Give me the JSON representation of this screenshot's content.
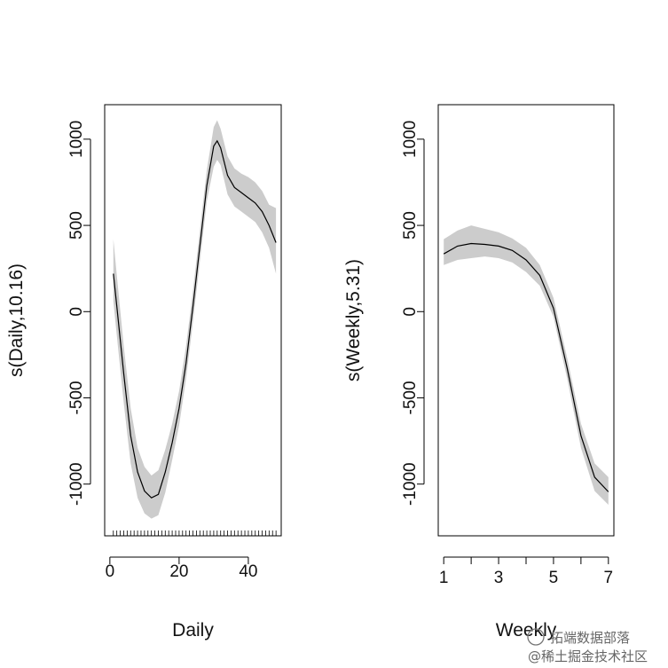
{
  "chart_data": [
    {
      "type": "line",
      "xlabel": "Daily",
      "ylabel": "s(Daily,10.16)",
      "xlim": [
        -1.5,
        49.5
      ],
      "ylim": [
        -1300,
        1200
      ],
      "xticks": [
        0,
        20,
        40
      ],
      "yticks": [
        -1000,
        -500,
        0,
        500,
        1000
      ],
      "rug": [
        1,
        2,
        3,
        4,
        5,
        6,
        7,
        8,
        9,
        10,
        11,
        12,
        13,
        14,
        15,
        16,
        17,
        18,
        19,
        20,
        21,
        22,
        23,
        24,
        25,
        26,
        27,
        28,
        29,
        30,
        31,
        32,
        33,
        34,
        35,
        36,
        37,
        38,
        39,
        40,
        41,
        42,
        43,
        44,
        45,
        46,
        47,
        48
      ],
      "series": [
        {
          "x": [
            1,
            2,
            4,
            6,
            8,
            10,
            12,
            14,
            16,
            18,
            20,
            22,
            24,
            26,
            28,
            30,
            31,
            32,
            34,
            36,
            38,
            40,
            42,
            44,
            46,
            48
          ],
          "y": [
            220,
            30,
            -360,
            -720,
            -930,
            -1040,
            -1080,
            -1060,
            -930,
            -760,
            -560,
            -300,
            30,
            380,
            730,
            960,
            990,
            950,
            790,
            720,
            690,
            660,
            630,
            580,
            500,
            400
          ],
          "lower": [
            60,
            -140,
            -530,
            -880,
            -1080,
            -1170,
            -1200,
            -1180,
            -1050,
            -860,
            -660,
            -390,
            -60,
            290,
            640,
            840,
            880,
            850,
            680,
            610,
            580,
            550,
            520,
            460,
            370,
            220
          ],
          "upper": [
            420,
            210,
            -200,
            -560,
            -790,
            -900,
            -950,
            -920,
            -800,
            -650,
            -460,
            -200,
            120,
            470,
            820,
            1070,
            1110,
            1060,
            900,
            830,
            800,
            780,
            750,
            700,
            620,
            600
          ]
        }
      ]
    },
    {
      "type": "line",
      "xlabel": "Weekly",
      "ylabel": "s(Weekly,5.31)",
      "xlim": [
        0.8,
        7.2
      ],
      "ylim": [
        -1300,
        1200
      ],
      "xticks": [
        1,
        2,
        3,
        4,
        5,
        6,
        7
      ],
      "xticklabels": [
        "1",
        "",
        "3",
        "",
        "5",
        "",
        "7"
      ],
      "yticks": [
        -1000,
        -500,
        0,
        500,
        1000
      ],
      "series": [
        {
          "x": [
            1,
            1.5,
            2,
            2.5,
            3,
            3.5,
            4,
            4.5,
            5,
            5.5,
            6,
            6.5,
            7
          ],
          "y": [
            335,
            380,
            395,
            390,
            380,
            355,
            300,
            210,
            20,
            -330,
            -720,
            -960,
            -1045
          ],
          "lower": [
            270,
            300,
            310,
            320,
            310,
            285,
            230,
            150,
            -30,
            -390,
            -790,
            -1040,
            -1120
          ],
          "upper": [
            420,
            470,
            500,
            480,
            460,
            425,
            370,
            270,
            80,
            -270,
            -650,
            -880,
            -960
          ]
        }
      ]
    }
  ],
  "watermark": {
    "line1": "拓端数据部落",
    "line2": "@稀土掘金技术社区"
  }
}
